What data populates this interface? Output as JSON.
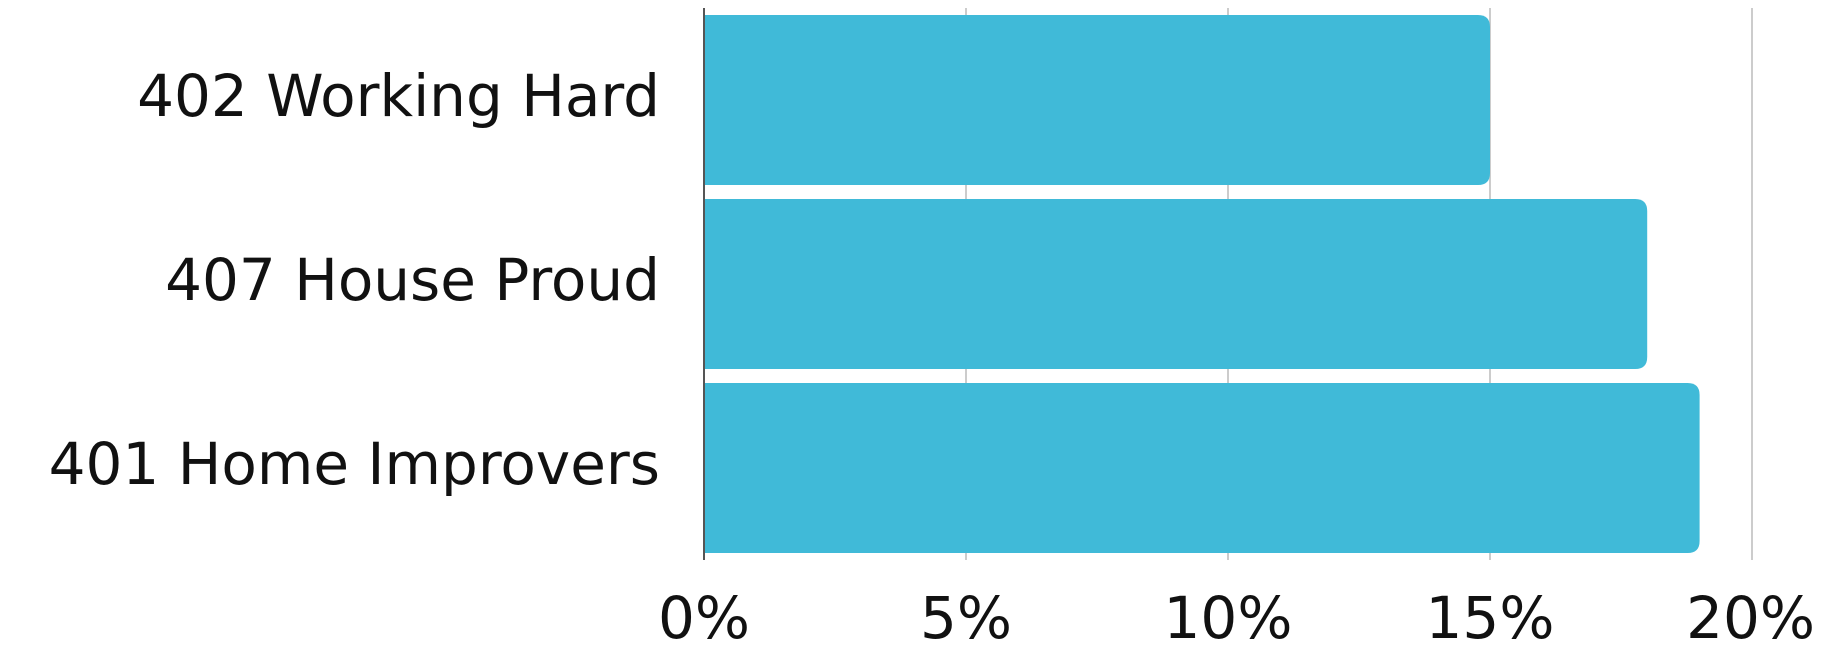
{
  "chart_data": {
    "type": "bar",
    "orientation": "horizontal",
    "title": "",
    "xlabel": "",
    "ylabel": "",
    "categories": [
      "402 Working Hard",
      "407 House Proud",
      "401 Home Improvers"
    ],
    "series": [
      {
        "values": [
          15.0,
          18.0,
          19.0
        ]
      }
    ],
    "xlim": [
      0,
      20
    ],
    "x_ticks": [
      0,
      5,
      10,
      15,
      20
    ],
    "x_tick_labels": [
      "0%",
      "5%",
      "10%",
      "15%",
      "20%"
    ],
    "grid": "vertical",
    "legend": "none",
    "colors": {
      "bar": "#40BAD8",
      "grid": "#CCCCCC",
      "axis": "#555555",
      "text": "#111111"
    }
  }
}
